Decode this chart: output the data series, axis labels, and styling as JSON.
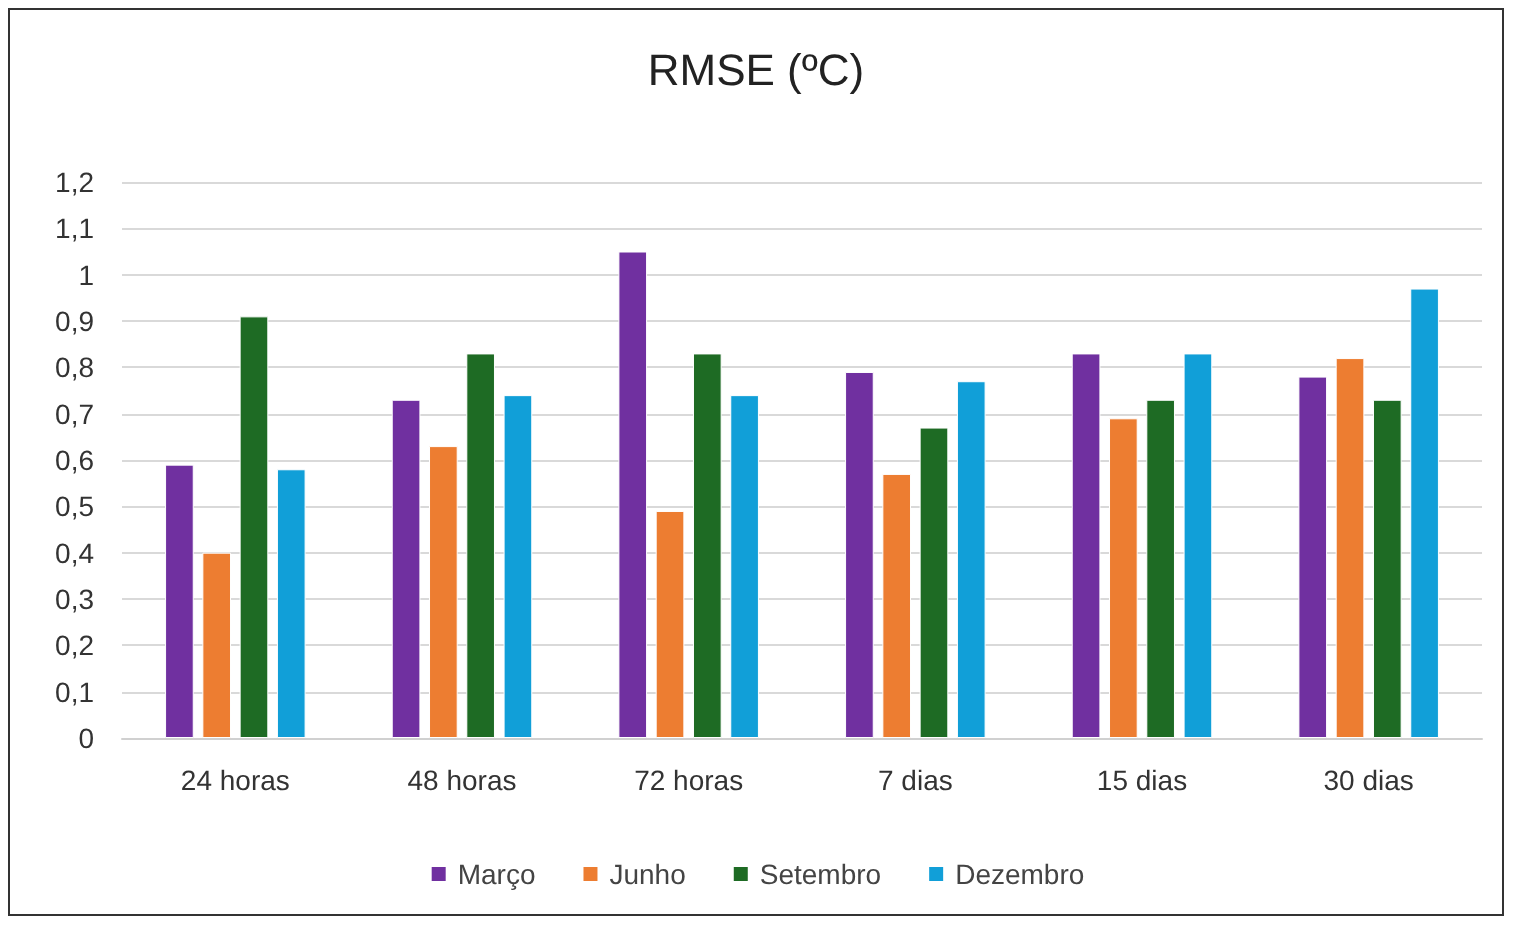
{
  "chart_data": {
    "type": "bar",
    "title": "RMSE (ºC)",
    "categories": [
      "24 horas",
      "48 horas",
      "72 horas",
      "7 dias",
      "15 dias",
      "30 dias"
    ],
    "series": [
      {
        "name": "Março",
        "color": "#7030a0",
        "values": [
          0.59,
          0.73,
          1.05,
          0.79,
          0.83,
          0.78
        ]
      },
      {
        "name": "Junho",
        "color": "#ed7d31",
        "values": [
          0.4,
          0.63,
          0.49,
          0.57,
          0.69,
          0.82
        ]
      },
      {
        "name": "Setembro",
        "color": "#1e6b24",
        "values": [
          0.91,
          0.83,
          0.83,
          0.67,
          0.73,
          0.73
        ]
      },
      {
        "name": "Dezembro",
        "color": "#119fd8",
        "values": [
          0.58,
          0.74,
          0.74,
          0.77,
          0.83,
          0.97
        ]
      }
    ],
    "ylim": [
      0,
      1.2
    ],
    "yticks": [
      0,
      {
        "value": 0.1,
        "label": "0,1"
      },
      {
        "value": 0.2,
        "label": "0,2"
      },
      {
        "value": 0.3,
        "label": "0,3"
      },
      {
        "value": 0.4,
        "label": "0,4"
      },
      {
        "value": 0.5,
        "label": "0,5"
      },
      {
        "value": 0.6,
        "label": "0,6"
      },
      {
        "value": 0.7,
        "label": "0,7"
      },
      {
        "value": 0.8,
        "label": "0,8"
      },
      {
        "value": 0.9,
        "label": "0,9"
      },
      1,
      {
        "value": 1.1,
        "label": "1,1"
      },
      {
        "value": 1.2,
        "label": "1,2"
      }
    ],
    "grid": "y",
    "legend": "bottom"
  }
}
